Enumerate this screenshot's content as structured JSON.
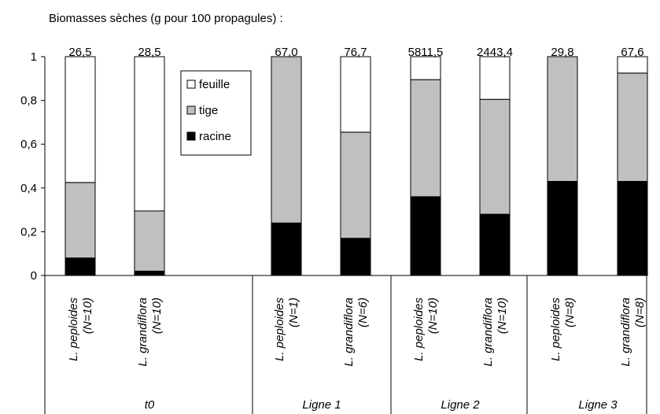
{
  "chart_data": {
    "type": "bar",
    "stacked": true,
    "title": "Biomasses sèches (g pour 100 propagules) :",
    "ylim": [
      0,
      1
    ],
    "yticks": [
      "0",
      "0,2",
      "0,4",
      "0,6",
      "0,8",
      "1"
    ],
    "ytick_values": [
      0,
      0.2,
      0.4,
      0.6,
      0.8,
      1
    ],
    "legend": {
      "placement": "top-center",
      "entries": [
        {
          "label": "feuille",
          "color": "#ffffff"
        },
        {
          "label": "tige",
          "color": "#c0c0c0"
        },
        {
          "label": "racine",
          "color": "#000000"
        }
      ]
    },
    "series": [
      {
        "name": "racine",
        "color": "#000000",
        "values": [
          0.08,
          0.02,
          0.24,
          0.17,
          0.36,
          0.28,
          0.43,
          0.43
        ]
      },
      {
        "name": "tige",
        "color": "#c0c0c0",
        "values": [
          0.345,
          0.275,
          0.76,
          0.485,
          0.535,
          0.525,
          0.57,
          0.495
        ]
      },
      {
        "name": "feuille",
        "color": "#ffffff",
        "values": [
          0.575,
          0.705,
          0.0,
          0.345,
          0.105,
          0.195,
          0.0,
          0.075
        ]
      }
    ],
    "categories": [
      {
        "species": "L. peploides",
        "n": "(N=10)",
        "total": "26,5",
        "group": 0
      },
      {
        "species": "L. grandiflora",
        "n": "(N=10)",
        "total": "28,5",
        "group": 0
      },
      {
        "species": "L. peploides",
        "n": "(N=1)",
        "total": "67,0",
        "group": 1
      },
      {
        "species": "L. grandiflora",
        "n": "(N=6)",
        "total": "76,7",
        "group": 1
      },
      {
        "species": "L. peploides",
        "n": "(N=10)",
        "total": "5811,5",
        "group": 2
      },
      {
        "species": "L. grandiflora",
        "n": "(N=10)",
        "total": "2443,4",
        "group": 2
      },
      {
        "species": "L. peploides",
        "n": "(N=8)",
        "total": "29,8",
        "group": 3
      },
      {
        "species": "L. grandiflora",
        "n": "(N=8)",
        "total": "67,6",
        "group": 3
      }
    ],
    "groups": [
      "t0",
      "Ligne 1",
      "Ligne 2",
      "Ligne 3"
    ]
  }
}
